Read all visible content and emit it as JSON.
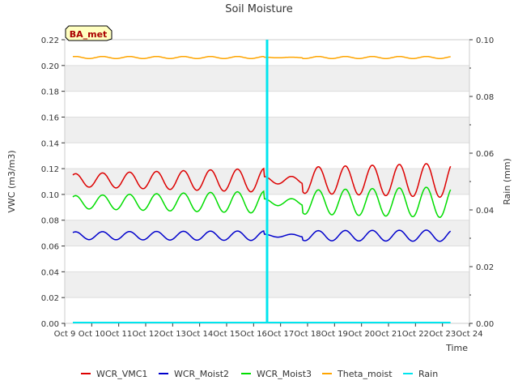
{
  "chart_data": {
    "type": "line",
    "title": "Soil Moisture",
    "xlabel": "Time",
    "ylabel_left": "VWC (m3/m3)",
    "ylabel_right": "Rain (mm)",
    "x_range": [
      9,
      24
    ],
    "xticks": [
      {
        "x": 9,
        "label": "Oct 9"
      },
      {
        "x": 10,
        "label": "Oct 10"
      },
      {
        "x": 11,
        "label": "Oct 11"
      },
      {
        "x": 12,
        "label": "Oct 12"
      },
      {
        "x": 13,
        "label": "Oct 13"
      },
      {
        "x": 14,
        "label": "Oct 14"
      },
      {
        "x": 15,
        "label": "Oct 15"
      },
      {
        "x": 16,
        "label": "Oct 16"
      },
      {
        "x": 17,
        "label": "Oct 17"
      },
      {
        "x": 18,
        "label": "Oct 18"
      },
      {
        "x": 19,
        "label": "Oct 19"
      },
      {
        "x": 20,
        "label": "Oct 20"
      },
      {
        "x": 21,
        "label": "Oct 21"
      },
      {
        "x": 22,
        "label": "Oct 22"
      },
      {
        "x": 23,
        "label": "Oct 23"
      },
      {
        "x": 24,
        "label": "Oct 24"
      }
    ],
    "ylim_left": [
      0,
      0.22
    ],
    "yticks_left": [
      "0.00",
      "0.02",
      "0.04",
      "0.06",
      "0.08",
      "0.10",
      "0.12",
      "0.14",
      "0.16",
      "0.18",
      "0.20",
      "0.22"
    ],
    "ylim_right": [
      0,
      0.1
    ],
    "yticks_right": [
      "0.00",
      "0.02",
      "0.04",
      "0.06",
      "0.08",
      "0.10"
    ],
    "annotation": "BA_met",
    "series": [
      {
        "name": "WCR_VMC1",
        "color": "#dd0000",
        "axis": "left",
        "base": 0.111,
        "amp": 0.005,
        "amp_growth": 0.0006,
        "gap_center": 16.6
      },
      {
        "name": "WCR_Moist2",
        "color": "#0000cc",
        "axis": "left",
        "base": 0.068,
        "amp": 0.003,
        "amp_growth": 0.0001,
        "gap_center": 16.6
      },
      {
        "name": "WCR_Moist3",
        "color": "#00dd00",
        "axis": "left",
        "base": 0.094,
        "amp": 0.005,
        "amp_growth": 0.0005,
        "gap_center": 16.6
      },
      {
        "name": "Theta_moist",
        "color": "#ffa500",
        "axis": "left",
        "base": 0.2062,
        "amp": 0.0008,
        "amp_growth": 0.0,
        "gap_center": 16.6
      },
      {
        "name": "Rain",
        "color": "#00e5ee",
        "axis": "right",
        "spike_x": 16.5,
        "spike_value": 0.1,
        "baseline": 0.0
      }
    ],
    "x_start": 9.3,
    "x_end": 23.3
  }
}
